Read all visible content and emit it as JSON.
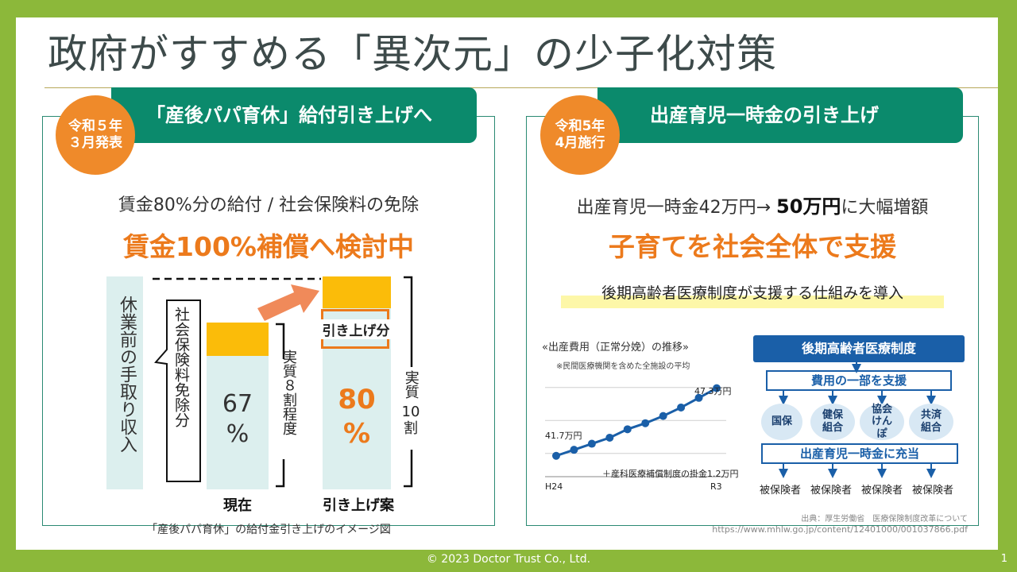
{
  "slide_title": "政府がすすめる「異次元」の少子化対策",
  "left": {
    "badge_line1": "令和５年",
    "badge_line2": "３月発表",
    "heading": "「産後パパ育休」給付引き上げへ",
    "subtitle": "賃金80%分の給付 / 社会保険料の免除",
    "highlight": "賃金100%補償へ検討中",
    "diagram": {
      "pre_leave_label": "休業前の手取り収入",
      "insurance_label": "社会保険料免除分",
      "current_percent_line1": "67",
      "current_percent_line2": "%",
      "current_bracket": "実質８割程度",
      "raise_label": "引き上げ分",
      "proposal_percent_line1": "80",
      "proposal_percent_line2": "%",
      "proposal_bracket_line1": "実質",
      "proposal_bracket_line2": "10",
      "proposal_bracket_line3": "割",
      "current_caption": "現在",
      "proposal_caption": "引き上げ案",
      "caption": "「産後パパ育休」の給付金引き上げのイメージ図"
    }
  },
  "right": {
    "badge_line1": "令和5年",
    "badge_line2": "4月施行",
    "heading": "出産育児一時金の引き上げ",
    "subtitle_prefix": "出産育児一時金42万円→ ",
    "subtitle_bold": "50万円",
    "subtitle_suffix": "に大幅増額",
    "highlight": "子育てを社会全体で支援",
    "marker_text": "後期高齢者医療制度が支援する仕組みを導入",
    "chart_title": "«出産費用（正常分娩）の推移»",
    "chart_note": "※民間医療機関を含めた全施設の平均",
    "chart_end_label": "47.3万円",
    "chart_start_label": "41.7万円",
    "chart_footnote": "＋産科医療補償制度の掛金1.2万円",
    "chart_x_start": "H24",
    "chart_x_end": "R3",
    "system_title": "後期高齢者医療制度",
    "support_box": "費用の一部を支援",
    "insurers": [
      "国保",
      "健保組合",
      "協会けんぽ",
      "共済組合"
    ],
    "appropriation_box": "出産育児一時金に充当",
    "insured": [
      "被保険者",
      "被保険者",
      "被保険者",
      "被保険者"
    ],
    "source_line1": "出典：厚生労働省　医療保険制度改革について",
    "source_line2": "https://www.mhlw.go.jp/content/12401000/001037866.pdf"
  },
  "chart_data": {
    "type": "line",
    "title": "«出産費用（正常分娩）の推移»",
    "x": [
      "H24",
      "",
      "",
      "",
      "",
      "",
      "",
      "",
      "",
      "R3"
    ],
    "series": [
      {
        "values": [
          41.7,
          42.2,
          42.7,
          43.2,
          43.9,
          44.4,
          45.0,
          45.7,
          46.5,
          47.3
        ]
      }
    ],
    "ylim": [
      40.5,
      48.0
    ],
    "grid": true
  },
  "footer": "© 2023 Doctor Trust Co., Ltd.",
  "page_number": "1",
  "colors": {
    "green": "#0b8a6c",
    "orange": "#ef8a2a",
    "bar_light": "#dcefee",
    "bar_yellow": "#fbbc09",
    "background": "#8cb83a"
  }
}
